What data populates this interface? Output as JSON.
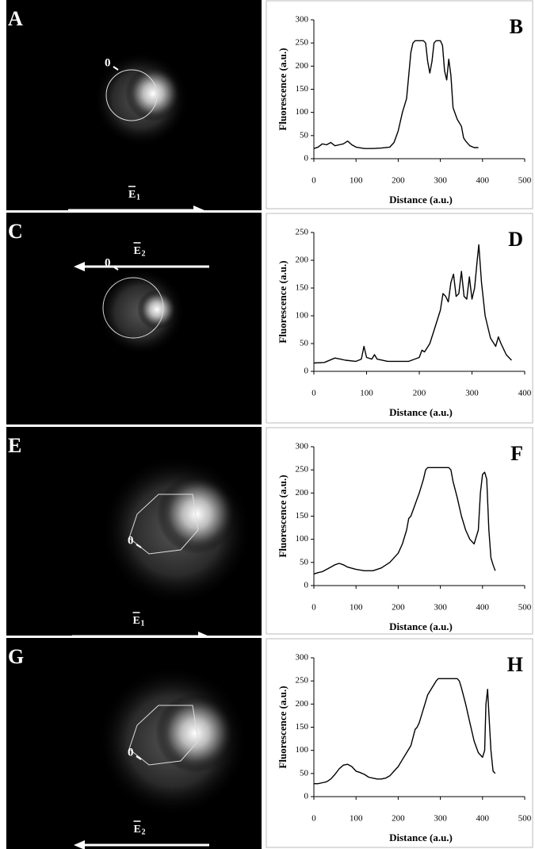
{
  "images": [
    {
      "label": "A",
      "origin": "0",
      "field": "E",
      "field_index": "1"
    },
    {
      "label": "C",
      "origin": "0",
      "field": "E",
      "field_index": "2"
    },
    {
      "label": "E",
      "origin": "0",
      "field": "E",
      "field_index": "1"
    },
    {
      "label": "G",
      "origin": "0",
      "field": "E",
      "field_index": "2"
    }
  ],
  "chart_data": [
    {
      "type": "line",
      "label": "B",
      "xlabel": "Distance (a.u.)",
      "ylabel": "Fluorescence (a.u.)",
      "xlim": [
        0,
        500
      ],
      "xticks": [
        0,
        100,
        200,
        300,
        400,
        500
      ],
      "ylim": [
        0,
        300
      ],
      "yticks": [
        0,
        50,
        100,
        150,
        200,
        250,
        300
      ],
      "color": "#000",
      "x": [
        0,
        10,
        20,
        30,
        40,
        50,
        60,
        70,
        80,
        90,
        100,
        120,
        140,
        160,
        180,
        190,
        200,
        210,
        220,
        225,
        230,
        235,
        240,
        250,
        260,
        265,
        270,
        275,
        280,
        285,
        290,
        300,
        305,
        310,
        315,
        320,
        325,
        330,
        340,
        350,
        355,
        360,
        370,
        380,
        390
      ],
      "values": [
        22,
        25,
        32,
        30,
        35,
        28,
        30,
        32,
        38,
        30,
        25,
        22,
        22,
        23,
        25,
        35,
        60,
        100,
        130,
        180,
        230,
        250,
        255,
        255,
        255,
        250,
        210,
        185,
        210,
        250,
        255,
        255,
        245,
        190,
        170,
        215,
        180,
        110,
        85,
        70,
        45,
        38,
        28,
        24,
        24
      ]
    },
    {
      "type": "line",
      "label": "D",
      "xlabel": "Distance (a.u.)",
      "ylabel": "Fluorescence (a.u.)",
      "xlim": [
        0,
        400
      ],
      "xticks": [
        0,
        100,
        200,
        300,
        400
      ],
      "ylim": [
        0,
        250
      ],
      "yticks": [
        0,
        50,
        100,
        150,
        200,
        250
      ],
      "color": "#000",
      "x": [
        0,
        20,
        40,
        50,
        60,
        80,
        90,
        95,
        100,
        110,
        115,
        120,
        140,
        160,
        180,
        200,
        205,
        210,
        220,
        230,
        240,
        245,
        250,
        255,
        260,
        265,
        270,
        275,
        280,
        285,
        290,
        295,
        300,
        305,
        310,
        313,
        318,
        325,
        335,
        345,
        350,
        355,
        365,
        375
      ],
      "values": [
        15,
        16,
        24,
        22,
        20,
        18,
        22,
        45,
        25,
        22,
        30,
        22,
        18,
        18,
        18,
        25,
        38,
        35,
        50,
        80,
        110,
        140,
        135,
        125,
        160,
        175,
        135,
        140,
        180,
        135,
        130,
        170,
        130,
        150,
        200,
        228,
        160,
        100,
        60,
        45,
        62,
        50,
        30,
        20
      ]
    },
    {
      "type": "line",
      "label": "F",
      "xlabel": "Distance (a.u.)",
      "ylabel": "Fluorescence (a.u.)",
      "xlim": [
        0,
        500
      ],
      "xticks": [
        0,
        100,
        200,
        300,
        400,
        500
      ],
      "ylim": [
        0,
        300
      ],
      "yticks": [
        0,
        50,
        100,
        150,
        200,
        250,
        300
      ],
      "color": "#000",
      "x": [
        0,
        10,
        20,
        30,
        40,
        50,
        60,
        70,
        80,
        100,
        120,
        140,
        150,
        160,
        180,
        200,
        210,
        220,
        225,
        230,
        240,
        250,
        260,
        265,
        270,
        300,
        320,
        325,
        330,
        340,
        350,
        360,
        370,
        380,
        390,
        395,
        400,
        405,
        410,
        415,
        420,
        425,
        430
      ],
      "values": [
        25,
        28,
        30,
        35,
        40,
        45,
        48,
        45,
        40,
        35,
        32,
        32,
        35,
        38,
        50,
        70,
        90,
        120,
        145,
        150,
        175,
        200,
        230,
        250,
        255,
        255,
        255,
        250,
        225,
        190,
        150,
        120,
        100,
        90,
        120,
        200,
        240,
        245,
        230,
        120,
        60,
        45,
        32
      ]
    },
    {
      "type": "line",
      "label": "H",
      "xlabel": "Distance (a.u.)",
      "ylabel": "Fluorescence (a.u.)",
      "xlim": [
        0,
        500
      ],
      "xticks": [
        0,
        100,
        200,
        300,
        400,
        500
      ],
      "ylim": [
        0,
        300
      ],
      "yticks": [
        0,
        50,
        100,
        150,
        200,
        250,
        300
      ],
      "color": "#000",
      "x": [
        0,
        10,
        20,
        30,
        40,
        50,
        60,
        70,
        80,
        90,
        100,
        110,
        120,
        130,
        140,
        150,
        160,
        170,
        180,
        190,
        200,
        210,
        220,
        230,
        240,
        245,
        250,
        260,
        270,
        280,
        290,
        295,
        340,
        345,
        350,
        360,
        370,
        380,
        390,
        400,
        405,
        408,
        412,
        415,
        420,
        425,
        430
      ],
      "values": [
        28,
        28,
        30,
        32,
        38,
        48,
        60,
        68,
        70,
        65,
        55,
        52,
        48,
        42,
        40,
        38,
        38,
        40,
        45,
        55,
        65,
        80,
        95,
        110,
        145,
        150,
        160,
        190,
        220,
        235,
        250,
        255,
        255,
        250,
        235,
        200,
        160,
        120,
        95,
        85,
        100,
        200,
        232,
        180,
        100,
        55,
        50
      ]
    }
  ]
}
